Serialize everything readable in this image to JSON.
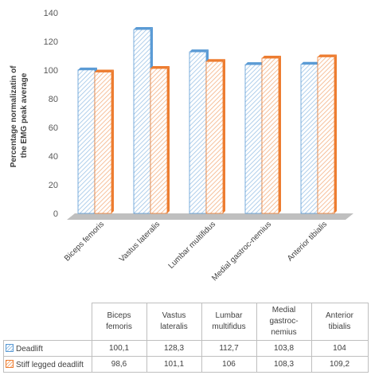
{
  "chart_data": {
    "type": "bar",
    "ylabel_line1": "Percentage normalizatin of",
    "ylabel_line2": "the EMG peak average",
    "ylim": [
      0,
      140
    ],
    "yticks": [
      0,
      20,
      40,
      60,
      80,
      100,
      120,
      140
    ],
    "grid": false,
    "style": "3d clustered bars with diagonal hatch fill",
    "categories": [
      "Biceps femoris",
      "Vastus lateralis",
      "Lumbar multifidus",
      "Medial gastroc-nemius",
      "Anterior tibialis"
    ],
    "series": [
      {
        "name": "Deadlift",
        "values": [
          100.1,
          128.3,
          112.7,
          103.8,
          104
        ],
        "labels": [
          "100,1",
          "128,3",
          "112,7",
          "103,8",
          "104"
        ],
        "color": "#5b9bd5",
        "hatch_color": "#9dc3e6"
      },
      {
        "name": "Stiff legged deadlift",
        "values": [
          98.6,
          101.1,
          106,
          108.3,
          109.2
        ],
        "labels": [
          "98,6",
          "101,1",
          "106",
          "108,3",
          "109,2"
        ],
        "color": "#ed7d31",
        "hatch_color": "#f4b183"
      }
    ],
    "floor_color": "#bfbfbf",
    "data_table": {
      "header_lines": [
        [
          "Biceps",
          "femoris"
        ],
        [
          "Vastus",
          "lateralis"
        ],
        [
          "Lumbar",
          "multifidus"
        ],
        [
          "Medial",
          "gastroc-",
          "nemius"
        ],
        [
          "Anterior",
          "tibialis"
        ]
      ]
    }
  }
}
